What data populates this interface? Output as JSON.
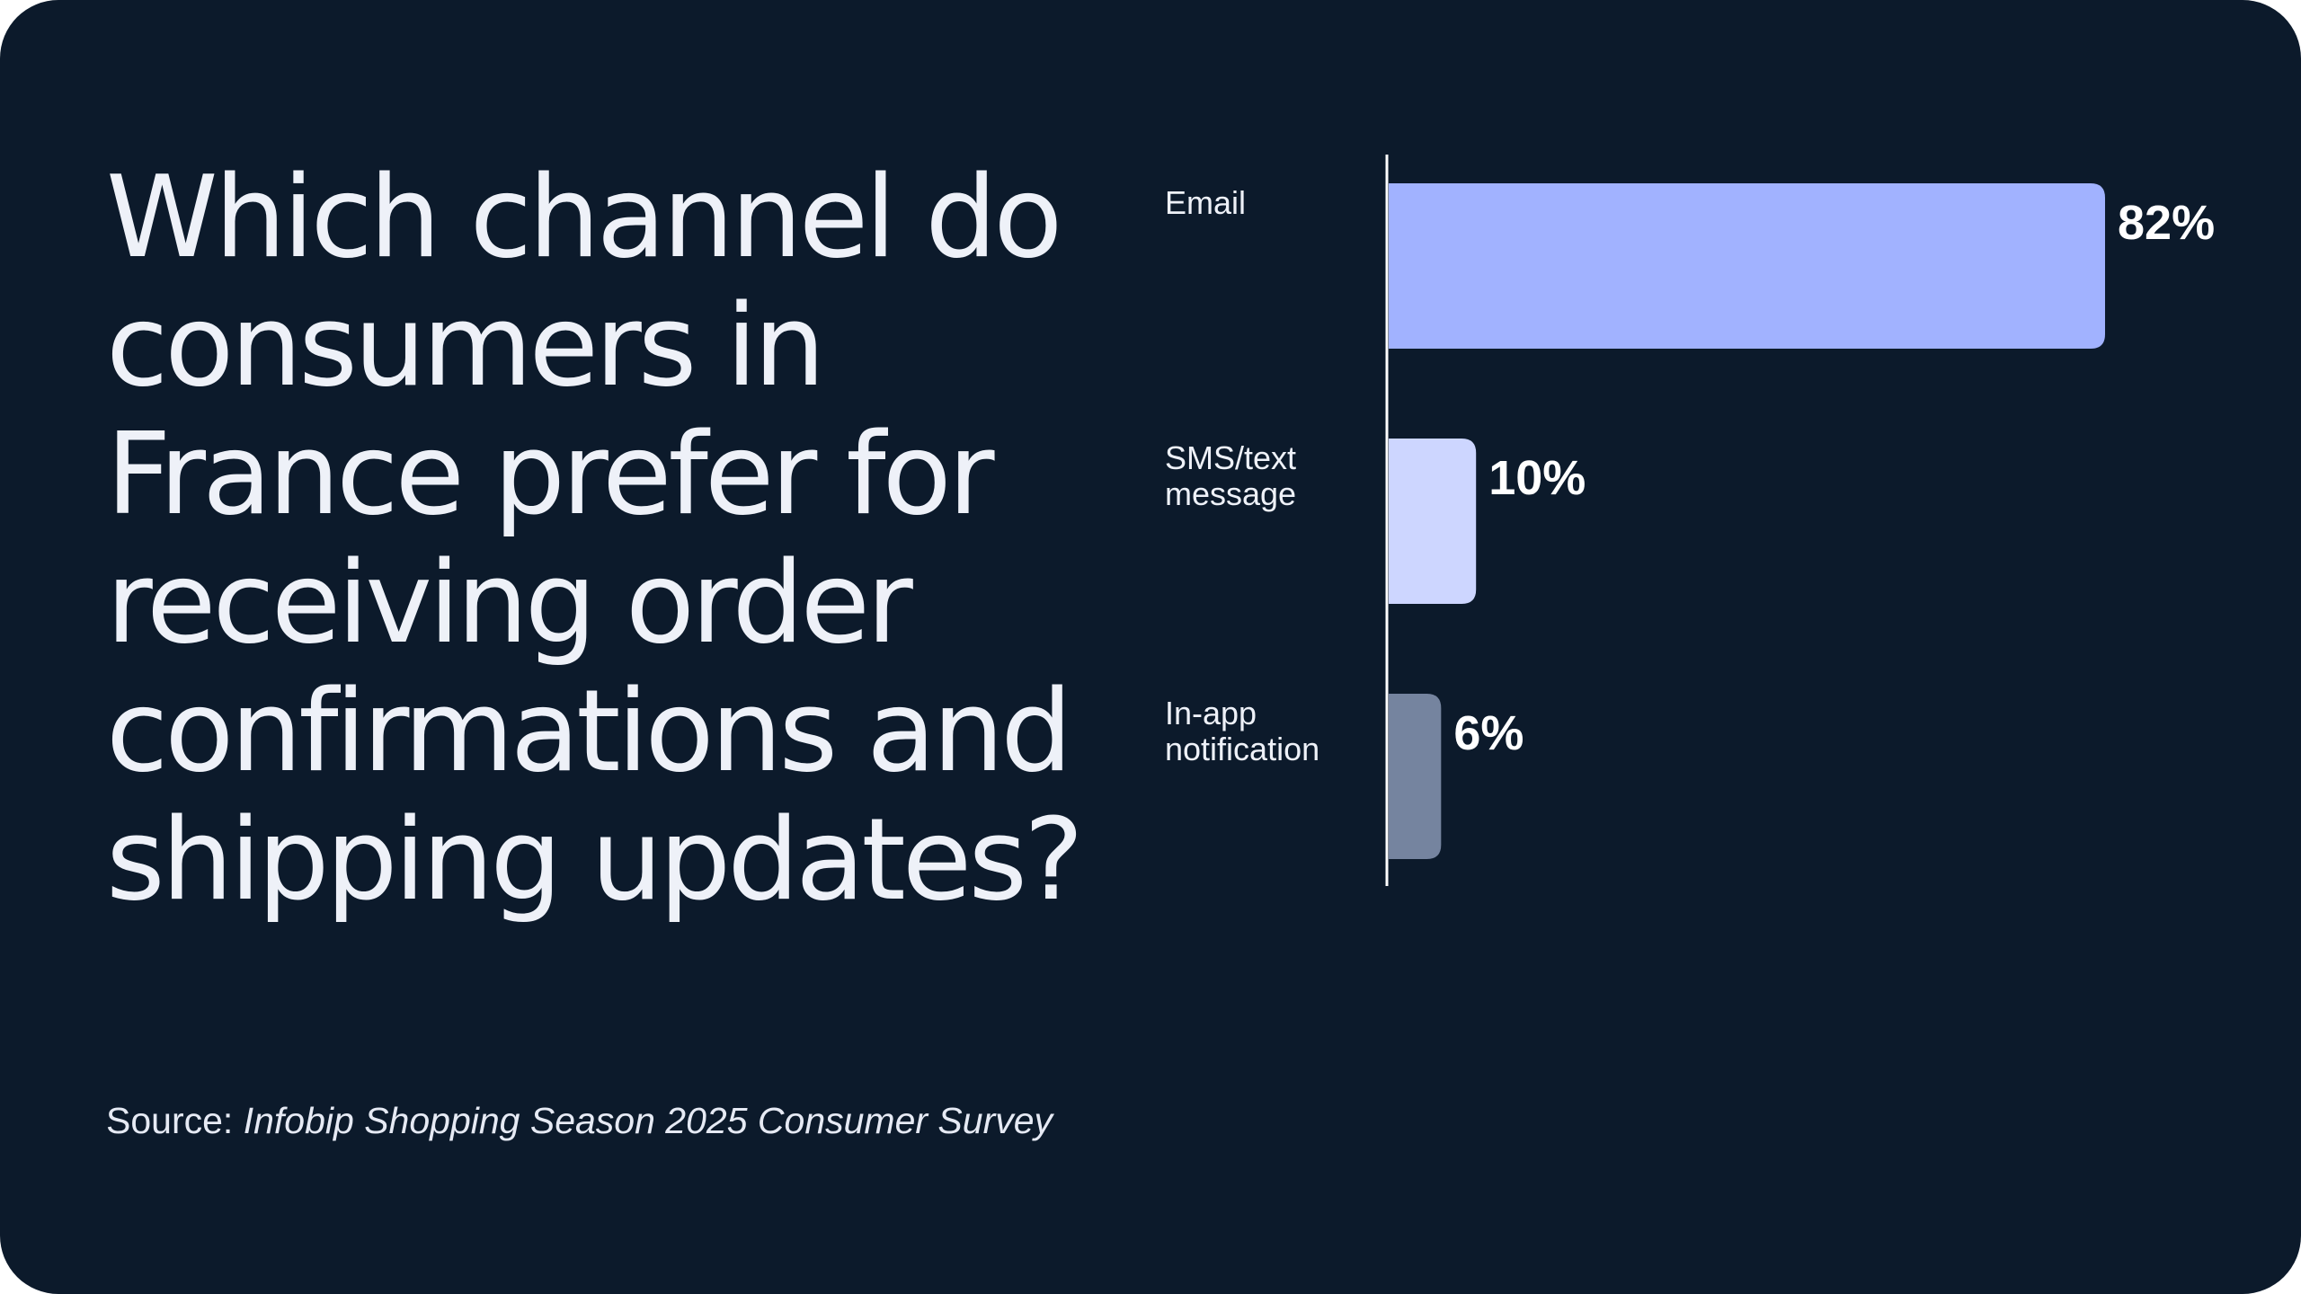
{
  "title": "Which channel do consumers in France prefer for receiving order confirmations and shipping updates?",
  "source": {
    "prefix": "Source: ",
    "name": "Infobip Shopping Season 2025 Consumer Survey"
  },
  "chart_data": {
    "type": "bar",
    "orientation": "horizontal",
    "categories": [
      [
        "Email"
      ],
      [
        "SMS/text",
        "message"
      ],
      [
        "In-app",
        "notification"
      ]
    ],
    "values": [
      82,
      10,
      6
    ],
    "value_labels": [
      "82%",
      "10%",
      "6%"
    ],
    "colors": [
      "#a1b2ff",
      "#cdd6ff",
      "#75849f"
    ],
    "axis_color": "#ffffff",
    "xlim": [
      0,
      82
    ],
    "grid": false,
    "legend": "none"
  }
}
